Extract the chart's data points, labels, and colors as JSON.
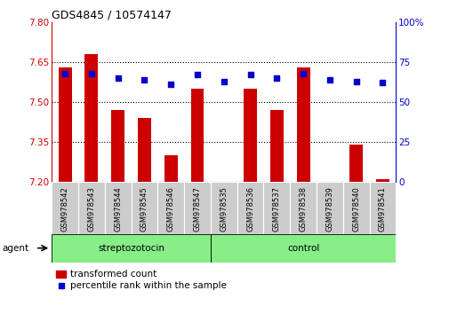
{
  "title": "GDS4845 / 10574147",
  "samples": [
    "GSM978542",
    "GSM978543",
    "GSM978544",
    "GSM978545",
    "GSM978546",
    "GSM978547",
    "GSM978535",
    "GSM978536",
    "GSM978537",
    "GSM978538",
    "GSM978539",
    "GSM978540",
    "GSM978541"
  ],
  "transformed_count": [
    7.63,
    7.68,
    7.47,
    7.44,
    7.3,
    7.55,
    7.2,
    7.55,
    7.47,
    7.63,
    7.2,
    7.34,
    7.21
  ],
  "percentile_rank": [
    68,
    68,
    65,
    64,
    61,
    67,
    63,
    67,
    65,
    68,
    64,
    63,
    62
  ],
  "bar_color": "#cc0000",
  "dot_color": "#0000cc",
  "ylim_left": [
    7.2,
    7.8
  ],
  "ylim_right": [
    0,
    100
  ],
  "yticks_left": [
    7.2,
    7.35,
    7.5,
    7.65,
    7.8
  ],
  "yticks_right": [
    0,
    25,
    50,
    75,
    100
  ],
  "hlines": [
    7.35,
    7.5,
    7.65
  ],
  "group1_label": "streptozotocin",
  "group2_label": "control",
  "group1_count": 6,
  "group2_count": 7,
  "legend_bar_label": "transformed count",
  "legend_dot_label": "percentile rank within the sample",
  "agent_label": "agent",
  "bar_width": 0.5
}
